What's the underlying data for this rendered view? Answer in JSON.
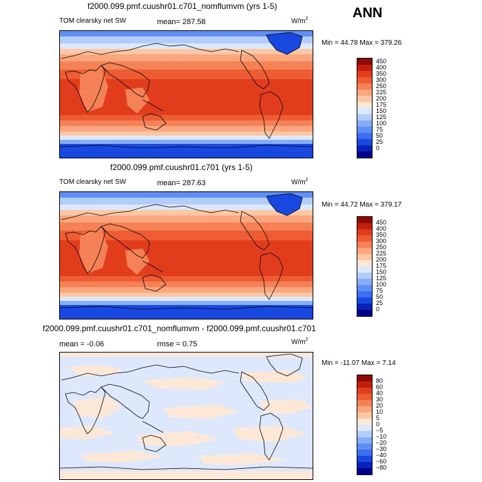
{
  "season_label": "ANN",
  "colors": {
    "abs_scale": [
      "#00008b",
      "#0a22b8",
      "#1848e0",
      "#3b6ef0",
      "#5f8ef5",
      "#86adf8",
      "#b3cdfb",
      "#dde8fd",
      "#fde8d8",
      "#fcc7a4",
      "#fba67e",
      "#f58256",
      "#ee5c34",
      "#e13d1d",
      "#bf1f0b",
      "#8e0a05"
    ],
    "diff_scale": [
      "#00008b",
      "#0a22b8",
      "#1848e0",
      "#3b6ef0",
      "#5f8ef5",
      "#86adf8",
      "#b3cdfb",
      "#dde8fd",
      "#fde8d8",
      "#fcc7a4",
      "#fba67e",
      "#f58256",
      "#ee5c34",
      "#e13d1d",
      "#bf1f0b",
      "#8e0a05"
    ]
  },
  "panels": [
    {
      "title": "f2000.099.pmf.cuushr01.c701_nomflumvm (yrs 1-5)",
      "variable": "TOM clearsky net SW",
      "stat1": "mean=  287.58",
      "units": "W/m",
      "units_exp": "2",
      "minmax": "Min =  44.78 Max = 379.26",
      "colorbar_labels": [
        "450",
        "400",
        "350",
        "300",
        "250",
        "225",
        "200",
        "175",
        "150",
        "125",
        "100",
        "75",
        "50",
        "25",
        "0"
      ]
    },
    {
      "title": "f2000.099.pmf.cuushr01.c701 (yrs 1-5)",
      "variable": "TOM clearsky net SW",
      "stat1": "mean=  287.63",
      "units": "W/m",
      "units_exp": "2",
      "minmax": "Min =  44.72 Max = 379.17",
      "colorbar_labels": [
        "450",
        "400",
        "350",
        "300",
        "250",
        "225",
        "200",
        "175",
        "150",
        "125",
        "100",
        "75",
        "50",
        "25",
        "0"
      ]
    },
    {
      "title": "f2000.099.pmf.cuushr01.c701_nomflumvm - f2000.099.pmf.cuushr01.c701",
      "stat1": "mean =   -0.06",
      "stat2": "rmse =    0.75",
      "units": "W/m",
      "units_exp": "2",
      "minmax": "Min = -11.07 Max =    7.14",
      "colorbar_labels": [
        "80",
        "60",
        "40",
        "30",
        "20",
        "10",
        "5",
        "0",
        "−5",
        "−10",
        "−20",
        "−30",
        "−40",
        "−60",
        "−80"
      ]
    }
  ]
}
